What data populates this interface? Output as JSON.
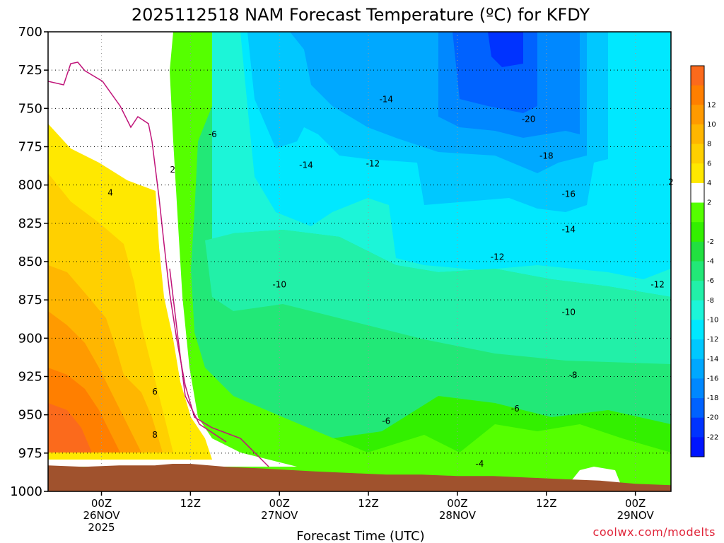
{
  "chart_data": {
    "type": "heatmap",
    "title": "2025112518 NAM Forecast Temperature (ºC) for KFDY",
    "xlabel": "Forecast Time (UTC)",
    "ylabel": "",
    "y_axis": {
      "type": "pressure",
      "unit": "hPa",
      "inverted": true,
      "range": [
        700,
        1000
      ],
      "ticks": [
        700,
        725,
        750,
        775,
        800,
        825,
        850,
        875,
        900,
        925,
        950,
        975,
        1000
      ],
      "tick_labels": [
        "700",
        "725",
        "750",
        "775",
        "800",
        "825",
        "850",
        "875",
        "900",
        "925",
        "950",
        "975",
        "1000"
      ]
    },
    "x_axis": {
      "range_hours": [
        -6,
        64
      ],
      "ticks": [
        {
          "hour": 0,
          "line1": "00Z",
          "line2": "26NOV",
          "line3": "2025"
        },
        {
          "hour": 10,
          "line1": "12Z",
          "line2": "",
          "line3": ""
        },
        {
          "hour": 20,
          "line1": "00Z",
          "line2": "27NOV",
          "line3": ""
        },
        {
          "hour": 30,
          "line1": "12Z",
          "line2": "",
          "line3": ""
        },
        {
          "hour": 40,
          "line1": "00Z",
          "line2": "28NOV",
          "line3": ""
        },
        {
          "hour": 50,
          "line1": "12Z",
          "line2": "",
          "line3": ""
        },
        {
          "hour": 60,
          "line1": "00Z",
          "line2": "29NOV",
          "line3": ""
        }
      ]
    },
    "grid": true,
    "colorbar": {
      "placement": "right",
      "levels": [
        14,
        12,
        10,
        8,
        6,
        4,
        2,
        0,
        -2,
        -4,
        -6,
        -8,
        -10,
        -12,
        -14,
        -16,
        -18,
        -20,
        -22,
        -24
      ],
      "colors": [
        "#fb6a1c",
        "#ff7f00",
        "#ff9a00",
        "#ffb600",
        "#ffd000",
        "#ffe800",
        "#ffffff",
        "#55ff00",
        "#33f000",
        "#22e040",
        "#22e877",
        "#22f0a8",
        "#1cf5d8",
        "#00e8ff",
        "#00c8ff",
        "#00a8ff",
        "#0088ff",
        "#0062ff",
        "#0033ff",
        "#0015ff"
      ],
      "tick_values": [
        12,
        10,
        8,
        6,
        4,
        2,
        -2,
        -4,
        -6,
        -8,
        -10,
        -12,
        -14,
        -16,
        -18,
        -20,
        -22
      ],
      "tick_labels": [
        "12",
        "10",
        "8",
        "6",
        "4",
        "2",
        "-2",
        "-4",
        "-6",
        "-8",
        "-10",
        "-12",
        "-14",
        "-16",
        "-18",
        "-20",
        "-22"
      ]
    },
    "contour_labels": [
      {
        "text": "2",
        "hour": 8.0,
        "pressure": 790
      },
      {
        "text": "4",
        "hour": 1.0,
        "pressure": 805
      },
      {
        "text": "6",
        "hour": 6.0,
        "pressure": 935
      },
      {
        "text": "8",
        "hour": 6.0,
        "pressure": 963
      },
      {
        "text": "-6",
        "hour": 12.5,
        "pressure": 767
      },
      {
        "text": "-14",
        "hour": 32.0,
        "pressure": 744
      },
      {
        "text": "-14",
        "hour": 23.0,
        "pressure": 787
      },
      {
        "text": "-12",
        "hour": 30.5,
        "pressure": 786
      },
      {
        "text": "-20",
        "hour": 48.0,
        "pressure": 757
      },
      {
        "text": "-18",
        "hour": 50.0,
        "pressure": 781
      },
      {
        "text": "-16",
        "hour": 52.5,
        "pressure": 806
      },
      {
        "text": "-14",
        "hour": 52.5,
        "pressure": 829
      },
      {
        "text": "-12",
        "hour": 44.5,
        "pressure": 847
      },
      {
        "text": "-12",
        "hour": 62.5,
        "pressure": 865
      },
      {
        "text": "-10",
        "hour": 20.0,
        "pressure": 865
      },
      {
        "text": "-10",
        "hour": 52.5,
        "pressure": 883
      },
      {
        "text": "-8",
        "hour": 53.0,
        "pressure": 924
      },
      {
        "text": "-6",
        "hour": 46.5,
        "pressure": 946
      },
      {
        "text": "-6",
        "hour": 32.0,
        "pressure": 954
      },
      {
        "text": "-4",
        "hour": 42.5,
        "pressure": 982
      },
      {
        "text": "2",
        "hour": 64.0,
        "pressure": 798
      }
    ],
    "surface_pressure": [
      {
        "hour": -6,
        "p": 983
      },
      {
        "hour": -2,
        "p": 984
      },
      {
        "hour": 2,
        "p": 983
      },
      {
        "hour": 6,
        "p": 983
      },
      {
        "hour": 8,
        "p": 982
      },
      {
        "hour": 10,
        "p": 982
      },
      {
        "hour": 14,
        "p": 984
      },
      {
        "hour": 18,
        "p": 985
      },
      {
        "hour": 24,
        "p": 987
      },
      {
        "hour": 28,
        "p": 988
      },
      {
        "hour": 32,
        "p": 989
      },
      {
        "hour": 36,
        "p": 989
      },
      {
        "hour": 40,
        "p": 990
      },
      {
        "hour": 44,
        "p": 990
      },
      {
        "hour": 48,
        "p": 991
      },
      {
        "hour": 52,
        "p": 992
      },
      {
        "hour": 56,
        "p": 993
      },
      {
        "hour": 60,
        "p": 995
      },
      {
        "hour": 64,
        "p": 996
      }
    ]
  },
  "credit": "coolwx.com/modelts"
}
